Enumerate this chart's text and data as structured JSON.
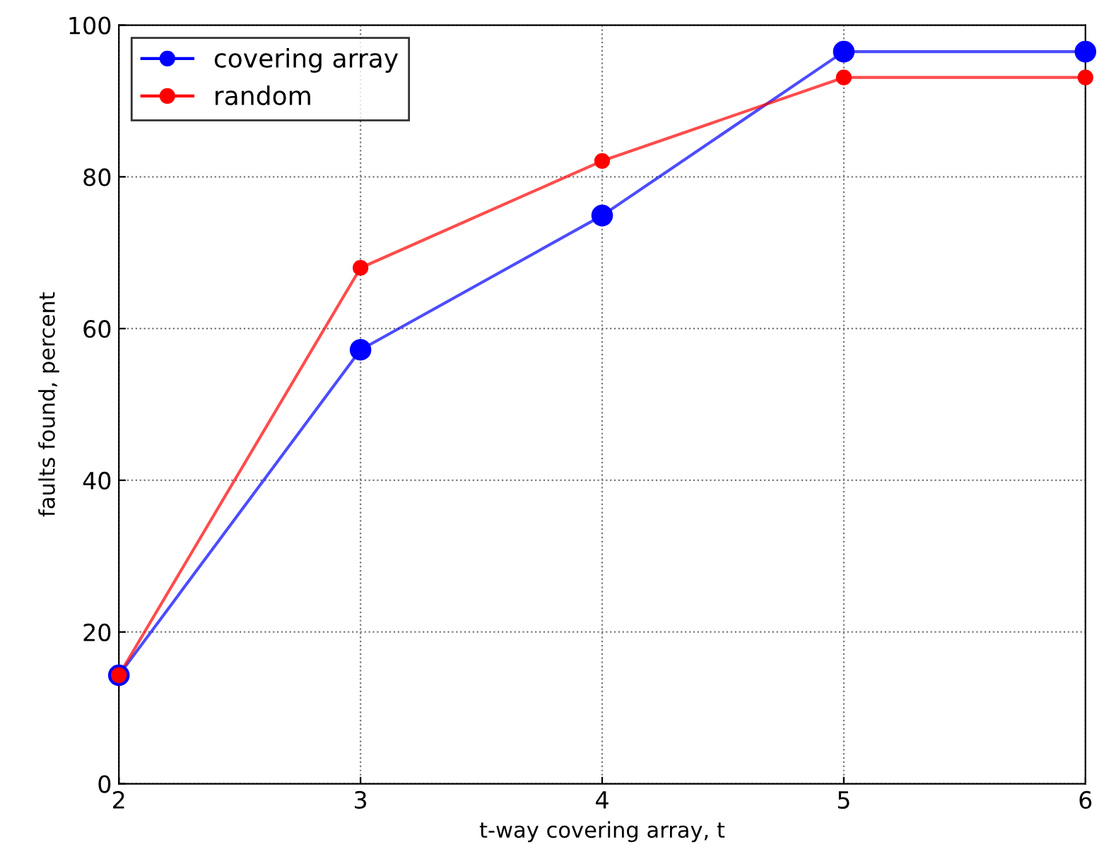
{
  "chart_data": {
    "type": "line",
    "xlabel": "t-way covering array, t",
    "ylabel": "faults found, percent",
    "x": [
      2,
      3,
      4,
      5,
      6
    ],
    "series": [
      {
        "name": "covering array",
        "color": "#0000ff",
        "values": [
          14.3,
          57.2,
          74.9,
          96.5,
          96.5
        ]
      },
      {
        "name": "random",
        "color": "#ff0000",
        "values": [
          14.3,
          68.0,
          82.1,
          93.1,
          93.1
        ]
      }
    ],
    "xlim": [
      2,
      6
    ],
    "xticks": [
      2,
      3,
      4,
      5,
      6
    ],
    "ylim": [
      0,
      100
    ],
    "yticks": [
      0,
      20,
      40,
      60,
      80,
      100
    ],
    "grid": true,
    "legend": "top left",
    "marker": "circle",
    "line_style": "solid"
  }
}
